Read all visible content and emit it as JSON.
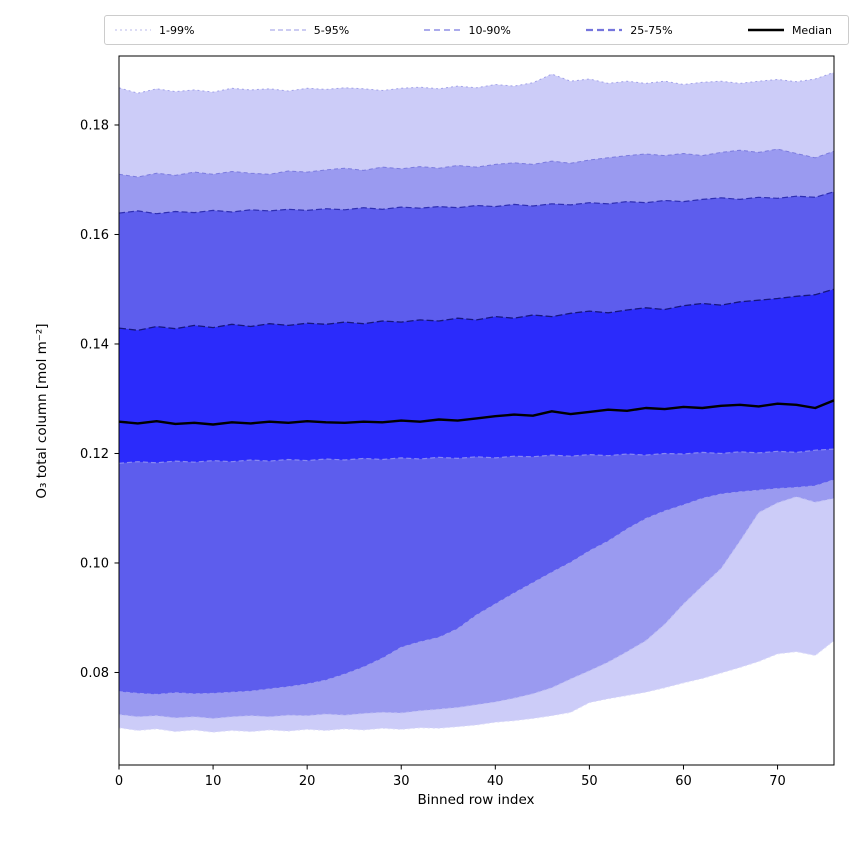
{
  "chart_data": {
    "type": "area",
    "title": "",
    "xlabel": "Binned row index",
    "ylabel": "O₃ total column [mol m⁻²]",
    "xlim": [
      0,
      76
    ],
    "ylim": [
      0.0631,
      0.1926
    ],
    "x_ticks": [
      0,
      10,
      20,
      30,
      40,
      50,
      60,
      70
    ],
    "y_ticks": [
      0.08,
      0.1,
      0.12,
      0.14,
      0.16,
      0.18
    ],
    "grid": false,
    "frame_color": "#000000",
    "legend": {
      "position": "top",
      "items": [
        {
          "label": "1-99%",
          "color": "#c8c8ef",
          "dash": "2 3",
          "width": 1.3
        },
        {
          "label": "5-95%",
          "color": "#adade9",
          "dash": "5 3",
          "width": 1.3
        },
        {
          "label": "10-90%",
          "color": "#8f8fe6",
          "dash": "6 4",
          "width": 1.6
        },
        {
          "label": "25-75%",
          "color": "#7575dd",
          "dash": "7 4",
          "width": 2.3
        },
        {
          "label": "Median",
          "color": "#000000",
          "dash": "",
          "width": 2.6
        }
      ]
    },
    "x": [
      0,
      2,
      4,
      6,
      8,
      10,
      12,
      14,
      16,
      18,
      20,
      22,
      24,
      26,
      28,
      30,
      32,
      34,
      36,
      38,
      40,
      42,
      44,
      46,
      48,
      50,
      52,
      54,
      56,
      58,
      60,
      62,
      64,
      66,
      68,
      70,
      72,
      74,
      76
    ],
    "percentiles": {
      "p99": [
        0.1868,
        0.1858,
        0.1866,
        0.1861,
        0.1864,
        0.186,
        0.1867,
        0.1864,
        0.1866,
        0.1862,
        0.1867,
        0.1865,
        0.1868,
        0.1866,
        0.1863,
        0.1867,
        0.1869,
        0.1866,
        0.1871,
        0.1868,
        0.1874,
        0.1871,
        0.1877,
        0.1893,
        0.188,
        0.1884,
        0.1876,
        0.188,
        0.1876,
        0.188,
        0.1874,
        0.1878,
        0.188,
        0.1876,
        0.188,
        0.1883,
        0.1879,
        0.1884,
        0.1896
      ],
      "p95": [
        0.171,
        0.1705,
        0.1712,
        0.1708,
        0.1714,
        0.171,
        0.1715,
        0.1712,
        0.171,
        0.1716,
        0.1714,
        0.1718,
        0.1721,
        0.1717,
        0.1723,
        0.172,
        0.1724,
        0.1721,
        0.1726,
        0.1723,
        0.1728,
        0.1731,
        0.1728,
        0.1734,
        0.173,
        0.1736,
        0.174,
        0.1744,
        0.1747,
        0.1744,
        0.1748,
        0.1744,
        0.175,
        0.1754,
        0.175,
        0.1756,
        0.1748,
        0.174,
        0.1752
      ],
      "p90": [
        0.1639,
        0.1643,
        0.1638,
        0.1642,
        0.164,
        0.1644,
        0.1641,
        0.1645,
        0.1643,
        0.1646,
        0.1644,
        0.1647,
        0.1645,
        0.1649,
        0.1646,
        0.165,
        0.1648,
        0.1651,
        0.1649,
        0.1653,
        0.1651,
        0.1655,
        0.1652,
        0.1656,
        0.1654,
        0.1658,
        0.1656,
        0.166,
        0.1658,
        0.1662,
        0.166,
        0.1664,
        0.1667,
        0.1664,
        0.1668,
        0.1666,
        0.167,
        0.1668,
        0.1678
      ],
      "p75": [
        0.1429,
        0.1425,
        0.1432,
        0.1428,
        0.1434,
        0.143,
        0.1436,
        0.1432,
        0.1437,
        0.1434,
        0.1438,
        0.1436,
        0.144,
        0.1437,
        0.1442,
        0.144,
        0.1444,
        0.1442,
        0.1447,
        0.1444,
        0.145,
        0.1447,
        0.1453,
        0.145,
        0.1456,
        0.146,
        0.1457,
        0.1462,
        0.1466,
        0.1463,
        0.147,
        0.1474,
        0.1471,
        0.1477,
        0.148,
        0.1483,
        0.1487,
        0.149,
        0.15
      ],
      "p50": [
        0.1258,
        0.1255,
        0.1259,
        0.1254,
        0.1256,
        0.1253,
        0.1257,
        0.1255,
        0.1258,
        0.1256,
        0.1259,
        0.1257,
        0.1256,
        0.1258,
        0.1257,
        0.126,
        0.1258,
        0.1262,
        0.126,
        0.1264,
        0.1268,
        0.1271,
        0.1269,
        0.1277,
        0.1272,
        0.1276,
        0.128,
        0.1278,
        0.1283,
        0.1281,
        0.1285,
        0.1283,
        0.1287,
        0.1289,
        0.1286,
        0.1291,
        0.1289,
        0.1283,
        0.1297
      ],
      "p25": [
        0.1182,
        0.1185,
        0.1183,
        0.1186,
        0.1184,
        0.1187,
        0.1185,
        0.1188,
        0.1186,
        0.1189,
        0.1187,
        0.119,
        0.1188,
        0.1191,
        0.1189,
        0.1192,
        0.119,
        0.1193,
        0.1191,
        0.1194,
        0.1192,
        0.1195,
        0.1194,
        0.1197,
        0.1195,
        0.1198,
        0.1196,
        0.1199,
        0.1197,
        0.12,
        0.1199,
        0.1202,
        0.12,
        0.1203,
        0.1201,
        0.1204,
        0.1202,
        0.1206,
        0.1208
      ],
      "p10": [
        0.0765,
        0.0762,
        0.076,
        0.0763,
        0.0761,
        0.0762,
        0.0764,
        0.0766,
        0.077,
        0.0774,
        0.0779,
        0.0786,
        0.0797,
        0.081,
        0.0826,
        0.0846,
        0.0856,
        0.0864,
        0.088,
        0.0905,
        0.0925,
        0.0945,
        0.0964,
        0.0983,
        0.1001,
        0.1022,
        0.104,
        0.1062,
        0.1081,
        0.1095,
        0.1106,
        0.1118,
        0.1126,
        0.113,
        0.1133,
        0.1136,
        0.1138,
        0.1141,
        0.1152
      ],
      "p5": [
        0.0723,
        0.0719,
        0.0721,
        0.0717,
        0.0719,
        0.0716,
        0.0719,
        0.0721,
        0.0719,
        0.0722,
        0.0721,
        0.0724,
        0.0722,
        0.0725,
        0.0727,
        0.0726,
        0.073,
        0.0733,
        0.0736,
        0.0741,
        0.0746,
        0.0753,
        0.0761,
        0.0772,
        0.0788,
        0.0803,
        0.0819,
        0.0838,
        0.0858,
        0.0888,
        0.0925,
        0.0958,
        0.099,
        0.104,
        0.1092,
        0.111,
        0.1121,
        0.1111,
        0.1118
      ],
      "p1": [
        0.0699,
        0.0694,
        0.0697,
        0.0692,
        0.0695,
        0.0691,
        0.0694,
        0.0692,
        0.0695,
        0.0693,
        0.0696,
        0.0694,
        0.0697,
        0.0695,
        0.0698,
        0.0696,
        0.0699,
        0.0698,
        0.0701,
        0.0704,
        0.0709,
        0.0712,
        0.0716,
        0.0721,
        0.0727,
        0.0745,
        0.0752,
        0.0758,
        0.0764,
        0.0772,
        0.0781,
        0.0789,
        0.0799,
        0.0809,
        0.082,
        0.0834,
        0.0838,
        0.0831,
        0.0858
      ]
    },
    "bands": [
      {
        "label": "1-99%",
        "lower": "p1",
        "upper": "p99",
        "fill": "#ccccf8",
        "upper_edge": {
          "color": "#a2a2e9",
          "dash": "2 3",
          "width": 1.0
        },
        "lower_edge": {
          "color": "#dcdcf9",
          "dash": "2 3",
          "width": 1.0
        }
      },
      {
        "label": "5-95%",
        "lower": "p5",
        "upper": "p95",
        "fill": "#9a9af0",
        "upper_edge": {
          "color": "#7b7bde",
          "dash": "4 3",
          "width": 1.0
        },
        "lower_edge": {
          "color": "#bebef4",
          "dash": "3 3",
          "width": 1.0
        }
      },
      {
        "label": "10-90%",
        "lower": "p10",
        "upper": "p90",
        "fill": "#5d5ded",
        "upper_edge": {
          "color": "#2e2eb2",
          "dash": "6 3",
          "width": 1.2
        },
        "lower_edge": {
          "color": "#9b9bf1",
          "dash": "4 3",
          "width": 1.0
        }
      },
      {
        "label": "25-75%",
        "lower": "p25",
        "upper": "p75",
        "fill": "#2b2bfb",
        "upper_edge": {
          "color": "#16167c",
          "dash": "7 3",
          "width": 1.3
        },
        "lower_edge": {
          "color": "#8888f3",
          "dash": "5 3",
          "width": 1.2
        }
      }
    ],
    "median": {
      "label": "Median",
      "key": "p50",
      "color": "#000000",
      "width": 2.4
    }
  }
}
